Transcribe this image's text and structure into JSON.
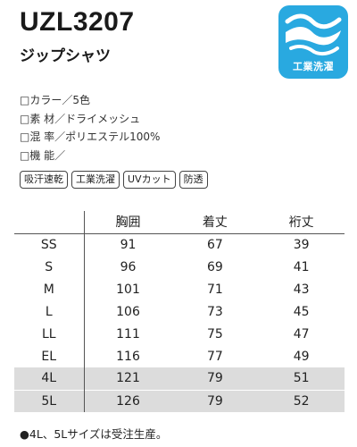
{
  "product": {
    "code": "UZL3207",
    "name": "ジップシャツ"
  },
  "badge": {
    "icon": "water-wave-icon",
    "label": "工業洗濯",
    "color": "#29a9e0"
  },
  "specs": [
    "□カラー／5色",
    "□素 材／ドライメッシュ",
    "□混 率／ポリエステル100%",
    "□機 能／"
  ],
  "features": [
    "吸汗速乾",
    "工業洗濯",
    "UVカット",
    "防透"
  ],
  "size_table": {
    "headers": [
      "",
      "胸囲",
      "着丈",
      "裄丈"
    ],
    "rows": [
      {
        "size": "SS",
        "values": [
          "91",
          "67",
          "39"
        ]
      },
      {
        "size": "S",
        "values": [
          "96",
          "69",
          "41"
        ]
      },
      {
        "size": "M",
        "values": [
          "101",
          "71",
          "43"
        ]
      },
      {
        "size": "L",
        "values": [
          "106",
          "73",
          "45"
        ]
      },
      {
        "size": "LL",
        "values": [
          "111",
          "75",
          "47"
        ]
      },
      {
        "size": "EL",
        "values": [
          "116",
          "77",
          "49"
        ]
      },
      {
        "size": "4L",
        "values": [
          "121",
          "79",
          "51"
        ]
      },
      {
        "size": "5L",
        "values": [
          "126",
          "79",
          "52"
        ]
      }
    ],
    "highlight_color": "#dcdcdc"
  },
  "note": "●4L、5Lサイズは受注生産。"
}
